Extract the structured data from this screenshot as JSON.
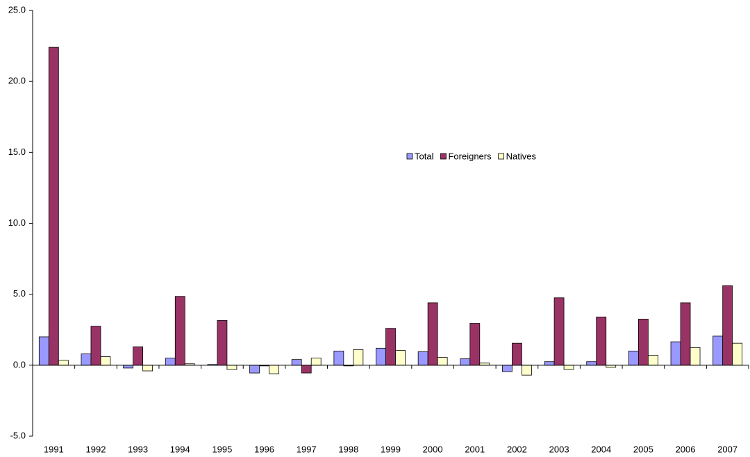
{
  "chart_data": {
    "type": "bar",
    "categories": [
      "1991",
      "1992",
      "1993",
      "1994",
      "1995",
      "1996",
      "1997",
      "1998",
      "1999",
      "2000",
      "2001",
      "2002",
      "2003",
      "2004",
      "2005",
      "2006",
      "2007"
    ],
    "series": [
      {
        "name": "Total",
        "color": "#9999ff",
        "values": [
          2.0,
          0.8,
          -0.2,
          0.5,
          0.05,
          -0.55,
          0.4,
          1.0,
          1.2,
          0.95,
          0.45,
          -0.45,
          0.25,
          0.25,
          1.0,
          1.65,
          2.05
        ]
      },
      {
        "name": "Foreigners",
        "color": "#993366",
        "values": [
          22.4,
          2.75,
          1.3,
          4.85,
          3.15,
          -0.05,
          -0.55,
          -0.05,
          2.6,
          4.4,
          2.95,
          1.55,
          4.75,
          3.4,
          3.25,
          4.4,
          5.6
        ]
      },
      {
        "name": "Natives",
        "color": "#ffffcc",
        "values": [
          0.35,
          0.6,
          -0.4,
          0.1,
          -0.3,
          -0.6,
          0.5,
          1.1,
          1.05,
          0.55,
          0.15,
          -0.7,
          -0.3,
          -0.15,
          0.7,
          1.25,
          1.55
        ]
      }
    ],
    "ylim": [
      -5,
      25
    ],
    "yticks": [
      {
        "value": -5,
        "label": "-5.0"
      },
      {
        "value": 0,
        "label": "0.0"
      },
      {
        "value": 5,
        "label": "5.0"
      },
      {
        "value": 10,
        "label": "10.0"
      },
      {
        "value": 15,
        "label": "15.0"
      },
      {
        "value": 20,
        "label": "20.0"
      },
      {
        "value": 25,
        "label": "25.0"
      }
    ],
    "grid": false
  }
}
